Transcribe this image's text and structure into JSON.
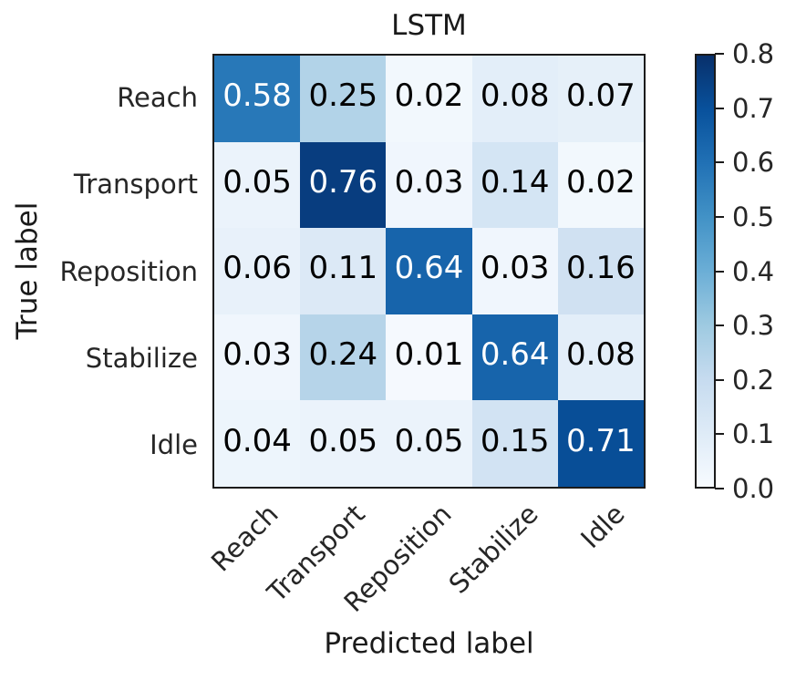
{
  "figure": {
    "title": "LSTM"
  },
  "axes": {
    "x_label": "Predicted label",
    "y_label": "True label"
  },
  "chart_data": {
    "type": "heatmap",
    "title": "LSTM",
    "xlabel": "Predicted label",
    "ylabel": "True label",
    "x_categories": [
      "Reach",
      "Transport",
      "Reposition",
      "Stabilize",
      "Idle"
    ],
    "y_categories": [
      "Reach",
      "Transport",
      "Reposition",
      "Stabilize",
      "Idle"
    ],
    "matrix": [
      [
        0.58,
        0.25,
        0.02,
        0.08,
        0.07
      ],
      [
        0.05,
        0.76,
        0.03,
        0.14,
        0.02
      ],
      [
        0.06,
        0.11,
        0.64,
        0.03,
        0.16
      ],
      [
        0.03,
        0.24,
        0.01,
        0.64,
        0.08
      ],
      [
        0.04,
        0.05,
        0.05,
        0.15,
        0.71
      ]
    ],
    "value_decimals": 2,
    "vmin": 0.0,
    "vmax": 0.8,
    "colormap": "Blues",
    "colormap_stops": [
      "#f7fbff",
      "#deebf7",
      "#c6dbef",
      "#9ecae1",
      "#6baed6",
      "#4292c6",
      "#2171b5",
      "#08519c",
      "#08306b"
    ],
    "colorbar_ticks": [
      0.0,
      0.1,
      0.2,
      0.3,
      0.4,
      0.5,
      0.6,
      0.7,
      0.8
    ],
    "colorbar_tick_decimals": 1,
    "legend_position": "right",
    "grid": false,
    "x_tick_rotation_deg": 45
  },
  "colors": {
    "cell_text_dark": "#000000",
    "cell_text_light": "#ffffff",
    "frame": "#1b1b1b",
    "text": "#1a1a1a"
  }
}
